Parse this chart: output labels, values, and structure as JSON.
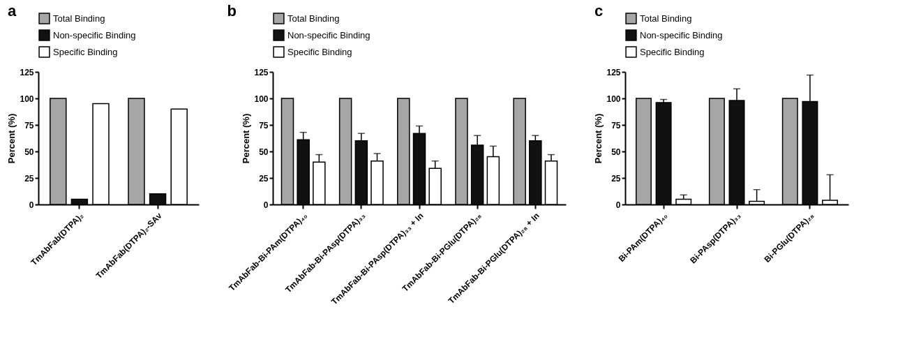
{
  "chart_data": [
    {
      "type": "bar",
      "title": "a",
      "ylabel": "Percent (%)",
      "categories": [
        "TmAbFab(DTPA)₂",
        "TmAbFab(DTPA)₂-SAv"
      ],
      "ylim": [
        0,
        125
      ],
      "yticks": [
        0,
        25,
        50,
        75,
        100,
        125
      ],
      "grid": false,
      "legend": "top",
      "series": [
        {
          "name": "Total Binding",
          "color": "#a6a6a6",
          "values": [
            100,
            100
          ]
        },
        {
          "name": "Non-specific Binding",
          "color": "#111111",
          "values": [
            5,
            10
          ]
        },
        {
          "name": "Specific Binding",
          "color": "#ffffff",
          "values": [
            95,
            90
          ]
        }
      ]
    },
    {
      "type": "bar",
      "title": "b",
      "ylabel": "Percent (%)",
      "categories": [
        "TmAbFab-Bi-PAm(DTPA)₄₀",
        "TmAbFab-Bi-PAsp(DTPA)₃₃",
        "TmAbFab-Bi-PAsp(DTPA)₃₃ + In",
        "TmAbFab-Bi-PGlu(DTPA)₂₈",
        "TmAbFab-Bi-PGlu(DTPA)₂₈ + In"
      ],
      "ylim": [
        0,
        125
      ],
      "yticks": [
        0,
        25,
        50,
        75,
        100,
        125
      ],
      "grid": false,
      "legend": "top",
      "series": [
        {
          "name": "Total Binding",
          "color": "#a6a6a6",
          "values": [
            100,
            100,
            100,
            100,
            100
          ]
        },
        {
          "name": "Non-specific Binding",
          "color": "#111111",
          "values": [
            61,
            60,
            67,
            56,
            60
          ],
          "errors": [
            [
              61,
              68
            ],
            [
              60,
              67
            ],
            [
              67,
              74
            ],
            [
              56,
              65
            ],
            [
              60,
              65
            ]
          ]
        },
        {
          "name": "Specific Binding",
          "color": "#ffffff",
          "values": [
            40,
            41,
            34,
            45,
            41
          ],
          "errors": [
            [
              40,
              47
            ],
            [
              41,
              48
            ],
            [
              34,
              41
            ],
            [
              45,
              55
            ],
            [
              41,
              47
            ]
          ]
        }
      ]
    },
    {
      "type": "bar",
      "title": "c",
      "ylabel": "Percent (%)",
      "categories": [
        "Bi-PAm(DTPA)₄₀",
        "Bi-PAsp(DTPA)₃₃",
        "Bi-PGlu(DTPA)₂₈"
      ],
      "ylim": [
        0,
        125
      ],
      "yticks": [
        0,
        25,
        50,
        75,
        100,
        125
      ],
      "grid": false,
      "legend": "top",
      "series": [
        {
          "name": "Total Binding",
          "color": "#a6a6a6",
          "values": [
            100,
            100,
            100
          ]
        },
        {
          "name": "Non-specific Binding",
          "color": "#111111",
          "values": [
            96,
            98,
            97
          ],
          "errors": [
            [
              96,
              99
            ],
            [
              98,
              109
            ],
            [
              97,
              122
            ]
          ]
        },
        {
          "name": "Specific Binding",
          "color": "#ffffff",
          "values": [
            5,
            3,
            4
          ],
          "errors": [
            [
              5,
              9
            ],
            [
              3,
              14
            ],
            [
              4,
              28
            ]
          ]
        }
      ]
    }
  ]
}
